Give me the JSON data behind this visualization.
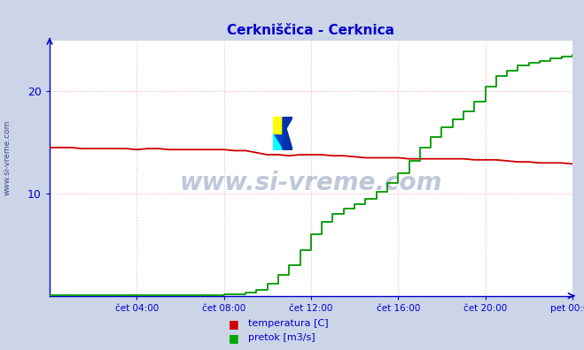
{
  "title": "Cerkniščica - Cerknica",
  "title_color": "#0000cc",
  "bg_color": "#ccd4e8",
  "plot_bg_color": "#ffffff",
  "grid_color": "#ffb0b0",
  "axis_color": "#0000cc",
  "xlabel_labels": [
    "čet 04:00",
    "čet 08:00",
    "čet 12:00",
    "čet 16:00",
    "čet 20:00",
    "pet 00:00"
  ],
  "xlim": [
    0,
    288
  ],
  "ylim": [
    0,
    25
  ],
  "yticks": [
    10,
    20
  ],
  "xtick_positions": [
    48,
    96,
    144,
    192,
    240,
    288
  ],
  "watermark": "www.si-vreme.com",
  "watermark_color": "#1a3a7a",
  "side_text": "www.si-vreme.com",
  "legend_items": [
    "temperatura [C]",
    "pretok [m3/s]"
  ],
  "legend_colors": [
    "#cc0000",
    "#00aa00"
  ],
  "temp_color": "#cc0000",
  "flow_color": "#009900",
  "temp_data_x": [
    0,
    6,
    12,
    18,
    24,
    30,
    36,
    42,
    48,
    54,
    60,
    66,
    72,
    78,
    84,
    90,
    96,
    102,
    108,
    114,
    120,
    126,
    132,
    138,
    144,
    150,
    156,
    162,
    168,
    174,
    180,
    186,
    192,
    198,
    204,
    210,
    216,
    222,
    228,
    234,
    240,
    246,
    252,
    258,
    264,
    270,
    276,
    282,
    288
  ],
  "temp_data_y": [
    14.5,
    14.5,
    14.5,
    14.4,
    14.4,
    14.4,
    14.4,
    14.4,
    14.3,
    14.4,
    14.4,
    14.3,
    14.3,
    14.3,
    14.3,
    14.3,
    14.3,
    14.2,
    14.2,
    14.0,
    13.8,
    13.8,
    13.7,
    13.8,
    13.8,
    13.8,
    13.7,
    13.7,
    13.6,
    13.5,
    13.5,
    13.5,
    13.5,
    13.4,
    13.4,
    13.4,
    13.4,
    13.4,
    13.4,
    13.3,
    13.3,
    13.3,
    13.2,
    13.1,
    13.1,
    13.0,
    13.0,
    13.0,
    12.9
  ],
  "flow_data_x": [
    0,
    6,
    12,
    18,
    24,
    30,
    36,
    42,
    48,
    54,
    60,
    66,
    72,
    78,
    84,
    90,
    96,
    102,
    108,
    114,
    120,
    126,
    132,
    138,
    144,
    150,
    156,
    162,
    168,
    174,
    180,
    186,
    192,
    198,
    204,
    210,
    216,
    222,
    228,
    234,
    240,
    246,
    252,
    258,
    264,
    270,
    276,
    282,
    288
  ],
  "flow_data_y": [
    0.05,
    0.05,
    0.05,
    0.05,
    0.05,
    0.05,
    0.05,
    0.05,
    0.05,
    0.05,
    0.05,
    0.05,
    0.05,
    0.05,
    0.05,
    0.05,
    0.1,
    0.15,
    0.3,
    0.6,
    1.2,
    2.0,
    3.0,
    4.5,
    6.0,
    7.2,
    8.0,
    8.5,
    9.0,
    9.5,
    10.2,
    11.0,
    12.0,
    13.2,
    14.5,
    15.5,
    16.5,
    17.3,
    18.0,
    19.0,
    20.5,
    21.5,
    22.0,
    22.5,
    22.8,
    23.0,
    23.2,
    23.4,
    23.6
  ]
}
